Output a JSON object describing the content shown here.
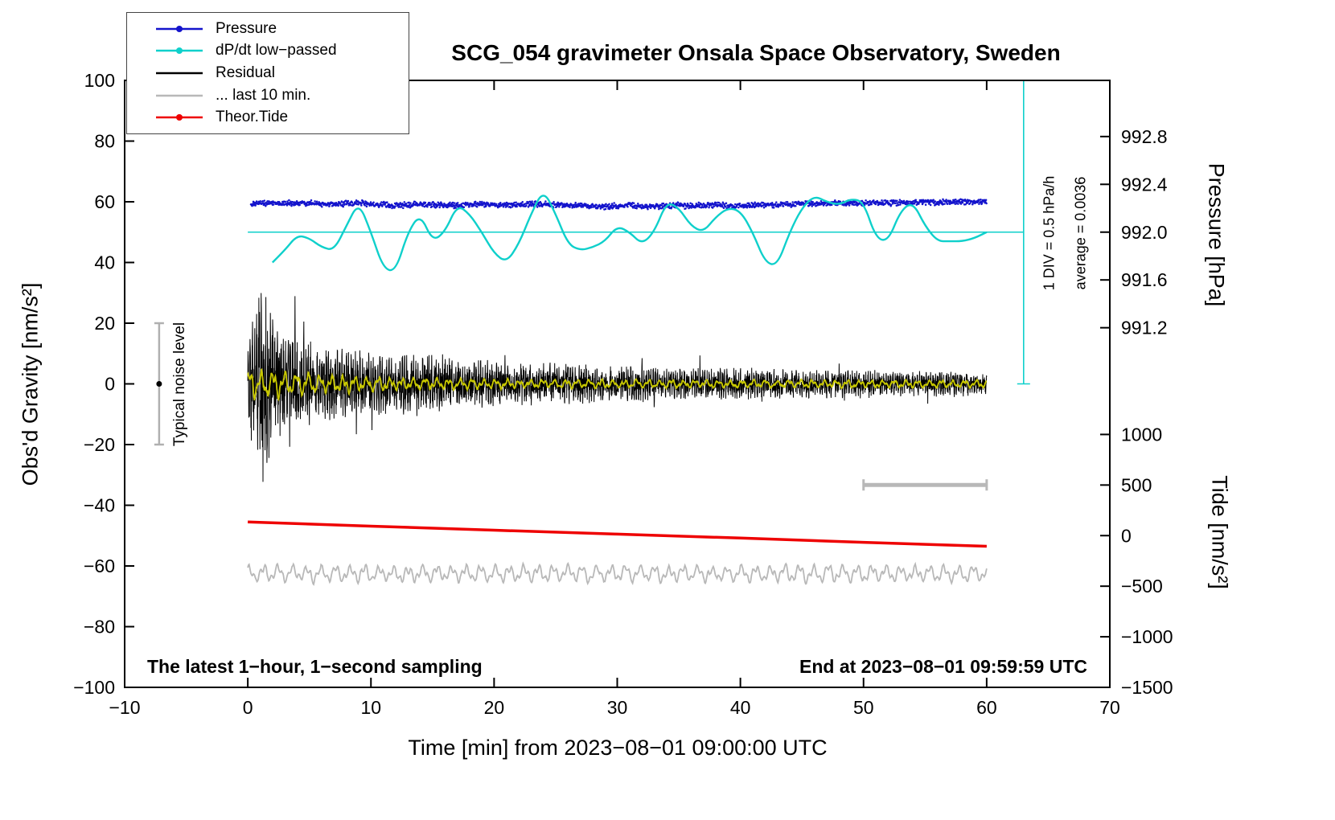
{
  "title": "SCG_054 gravimeter Onsala Space Observatory, Sweden",
  "xlabel": "Time [min] from 2023−08−01 09:00:00 UTC",
  "ylabel_left": "Obs'd Gravity [nm/s²]",
  "ylabel_pressure": "Pressure [hPa]",
  "ylabel_tide": "Tide [nm/s²]",
  "footer_left": "The latest 1−hour, 1−second sampling",
  "footer_right": "End at 2023−08−01 09:59:59 UTC",
  "annotation_div": "1 DIV = 0.5 hPa/h",
  "annotation_average": "average = 0.0036",
  "annotation_noise": "Typical noise level",
  "legend": {
    "items": [
      {
        "label": "Pressure",
        "color": "#1414cc",
        "marker": true
      },
      {
        "label": "dP/dt low−passed",
        "color": "#0fd0cb",
        "marker": true
      },
      {
        "label": "Residual",
        "color": "#000000",
        "marker": false
      },
      {
        "label": "... last 10 min.",
        "color": "#b8b8b8",
        "marker": false
      },
      {
        "label": "Theor.Tide",
        "color": "#ee0000",
        "marker": true
      }
    ]
  },
  "axes": {
    "x": {
      "min": -10,
      "max": 70,
      "ticks": [
        -10,
        0,
        10,
        20,
        30,
        40,
        50,
        60,
        70
      ],
      "tick_labels": [
        "−10",
        "0",
        "10",
        "20",
        "30",
        "40",
        "50",
        "60",
        "70"
      ]
    },
    "y_left": {
      "min": -100,
      "max": 100,
      "ticks": [
        -100,
        -80,
        -60,
        -40,
        -20,
        0,
        20,
        40,
        60,
        80,
        100
      ],
      "tick_labels": [
        "−100",
        "−80",
        "−60",
        "−40",
        "−20",
        "0",
        "20",
        "40",
        "60",
        "80",
        "100"
      ]
    },
    "y_pressure": {
      "ticks": [
        992.8,
        992.4,
        992.0,
        991.6,
        991.2
      ],
      "tick_labels": [
        "992.8",
        "992.4",
        "992.0",
        "991.6",
        "991.2"
      ],
      "left_value_of_992": 50,
      "left_units_per_hPa": 39.375
    },
    "y_tide": {
      "ticks": [
        1000,
        500,
        0,
        -500,
        -1000,
        -1500
      ],
      "tick_labels": [
        "1000",
        "500",
        "0",
        "−500",
        "−1000",
        "−1500"
      ],
      "left_value_of_0": -50,
      "left_units_per_unit": 0.033333
    }
  },
  "chart_data": {
    "type": "line",
    "title": "SCG_054 gravimeter Onsala Space Observatory, Sweden",
    "x_unit": "min",
    "x_range": [
      0,
      60
    ],
    "sampling": "1-second samples over the latest hour",
    "series": [
      {
        "name": "Pressure",
        "color": "#1414cc",
        "style": "dots",
        "axis": "left-units",
        "mean_hPa": 992.23,
        "per_minute_left_units": [
          59.3,
          59.6,
          59.5,
          59.4,
          59.6,
          59.5,
          59.3,
          59.2,
          59.4,
          59.5,
          59.3,
          59.0,
          58.8,
          59.0,
          59.2,
          59.0,
          58.8,
          58.9,
          59.0,
          59.1,
          58.9,
          58.8,
          59.0,
          59.2,
          59.1,
          58.9,
          58.7,
          58.8,
          58.6,
          58.5,
          58.7,
          58.9,
          58.6,
          58.4,
          58.6,
          58.8,
          58.7,
          58.9,
          59.0,
          58.8,
          58.7,
          58.9,
          59.1,
          59.0,
          59.2,
          59.4,
          59.3,
          59.5,
          59.6,
          59.4,
          59.5,
          59.7,
          59.6,
          59.8,
          59.7,
          59.9,
          59.8,
          60.0,
          59.9,
          60.1,
          60.0
        ],
        "dot_jitter": 0.5
      },
      {
        "name": "dP/dt low−passed",
        "color": "#0fd0cb",
        "style": "smooth",
        "x_start": 2,
        "per_minute_left_units": [
          40,
          40,
          40,
          44,
          49,
          48,
          45,
          44,
          52,
          60,
          50,
          38,
          37,
          50,
          56,
          47,
          50,
          59,
          56,
          50,
          43,
          40,
          46,
          56,
          64,
          56,
          46,
          44,
          45,
          47,
          52,
          50,
          46,
          50,
          60,
          58,
          52,
          50,
          55,
          58,
          57,
          50,
          40,
          39,
          50,
          58,
          62,
          60,
          59,
          61,
          60,
          48,
          47,
          57,
          60,
          52,
          47,
          47,
          47,
          48,
          50
        ]
      },
      {
        "name": "Residual",
        "color": "#000000",
        "style": "noise",
        "mean": 0,
        "sample_s": 1,
        "amplitude_envelope": [
          [
            0,
            12
          ],
          [
            0.5,
            22
          ],
          [
            1,
            32
          ],
          [
            1.5,
            28
          ],
          [
            2,
            22
          ],
          [
            3,
            17
          ],
          [
            4,
            14
          ],
          [
            5,
            13
          ],
          [
            6,
            12
          ],
          [
            8,
            11
          ],
          [
            10,
            10
          ],
          [
            12,
            9
          ],
          [
            14,
            10
          ],
          [
            16,
            9
          ],
          [
            18,
            8
          ],
          [
            20,
            7
          ],
          [
            24,
            6.5
          ],
          [
            28,
            6
          ],
          [
            32,
            5.5
          ],
          [
            36,
            5
          ],
          [
            40,
            5
          ],
          [
            45,
            4.5
          ],
          [
            50,
            4.5
          ],
          [
            55,
            4
          ],
          [
            60,
            4
          ]
        ]
      },
      {
        "name": "Residual low−passed",
        "color": "#c8c800",
        "style": "smooth-noise",
        "mean": 0,
        "amp_start": 6,
        "amp_end": 1.5
      },
      {
        "name": "... last 10 min.",
        "color": "#b8b8b8",
        "style": "smooth-noise",
        "baseline": -62.5,
        "amplitude": 2.5
      },
      {
        "name": "Theor.Tide",
        "color": "#ee0000",
        "style": "line",
        "x_step_min": 10,
        "values_left_units": [
          -45.5,
          -46.9,
          -48.2,
          -49.5,
          -50.8,
          -52.2,
          -53.5
        ],
        "values_tide_units": [
          135,
          93,
          54,
          15,
          -24,
          -66,
          -105
        ]
      }
    ],
    "reference_line": {
      "value_left_units": 50,
      "color": "#0fd0cb",
      "x_from": 0,
      "x_to": 63
    },
    "div_indicator": {
      "x_min": 63,
      "from_left_units": 100,
      "to_left_units": 0,
      "color": "#0fd0cb"
    },
    "noise_level_bar": {
      "x_min": -7.2,
      "center_left_units": 0,
      "half_range": 20,
      "color": "#b0b0b0"
    },
    "scale_bar": {
      "x_from": 50,
      "x_to": 60,
      "y_left_units": -33.3,
      "color": "#b8b8b8"
    },
    "legend_position": "top-left",
    "grid": false
  }
}
